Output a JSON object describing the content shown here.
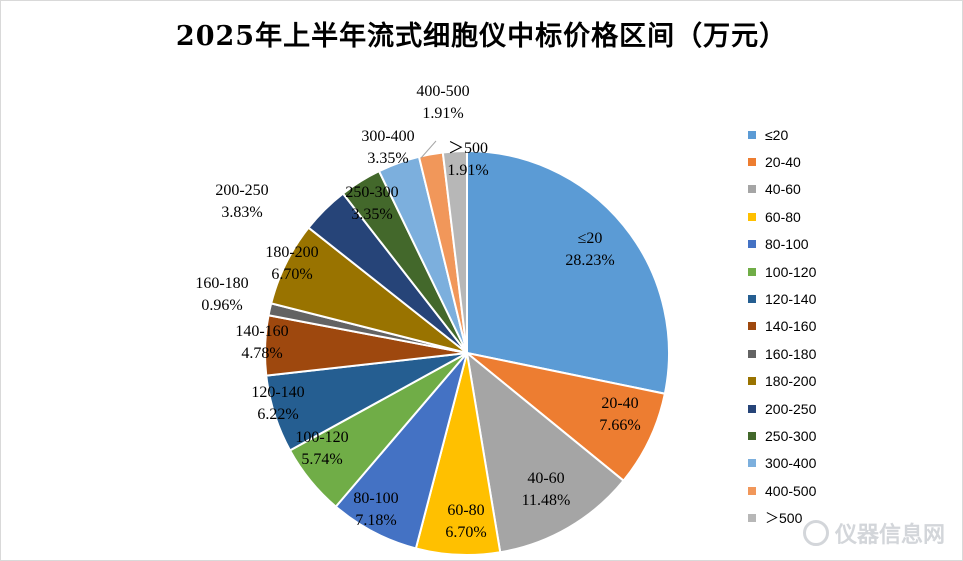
{
  "chart_data": {
    "type": "pie",
    "title": "2025年上半年流式细胞仪中标价格区间（万元）",
    "unit": "万元",
    "legend_position": "right",
    "slices": [
      {
        "label": "≤20",
        "percent_label": "28.23%",
        "value": 28.23,
        "color": "#5B9BD5"
      },
      {
        "label": "20-40",
        "percent_label": "7.66%",
        "value": 7.66,
        "color": "#ED7D31"
      },
      {
        "label": "40-60",
        "percent_label": "11.48%",
        "value": 11.48,
        "color": "#A5A5A5"
      },
      {
        "label": "60-80",
        "percent_label": "6.70%",
        "value": 6.7,
        "color": "#FFC000"
      },
      {
        "label": "80-100",
        "percent_label": "7.18%",
        "value": 7.18,
        "color": "#4472C4"
      },
      {
        "label": "100-120",
        "percent_label": "5.74%",
        "value": 5.74,
        "color": "#70AD47"
      },
      {
        "label": "120-140",
        "percent_label": "6.22%",
        "value": 6.22,
        "color": "#255E91"
      },
      {
        "label": "140-160",
        "percent_label": "4.78%",
        "value": 4.78,
        "color": "#9E480E"
      },
      {
        "label": "160-180",
        "percent_label": "0.96%",
        "value": 0.96,
        "color": "#636363"
      },
      {
        "label": "180-200",
        "percent_label": "6.70%",
        "value": 6.7,
        "color": "#997300"
      },
      {
        "label": "200-250",
        "percent_label": "3.83%",
        "value": 3.83,
        "color": "#264478"
      },
      {
        "label": "250-300",
        "percent_label": "3.35%",
        "value": 3.35,
        "color": "#43682B"
      },
      {
        "label": "300-400",
        "percent_label": "3.35%",
        "value": 3.35,
        "color": "#7CAFDD"
      },
      {
        "label": "400-500",
        "percent_label": "1.91%",
        "value": 1.91,
        "color": "#F1975A"
      },
      {
        "label": "＞500",
        "percent_label": "1.91%",
        "value": 1.91,
        "color": "#B7B7B7"
      }
    ]
  },
  "watermark": {
    "text": "仪器信息网"
  }
}
